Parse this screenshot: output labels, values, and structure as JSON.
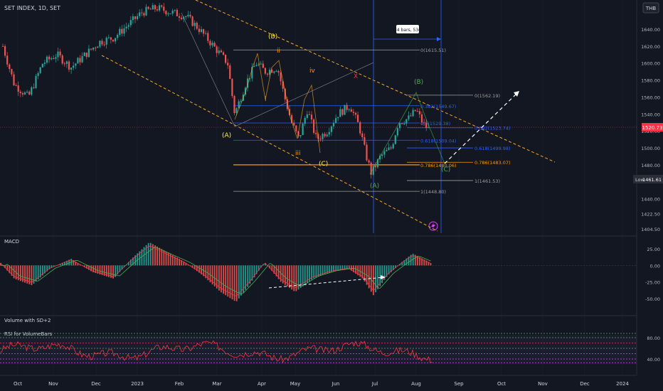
{
  "symbol": "SET INDEX, 1D, SET",
  "currency": "THB",
  "measure_label": "34 bars, 53d",
  "last_price": "1520.73",
  "low_label": "Low",
  "low_value": "1461.61",
  "lightning_icon": "lightning-icon",
  "colors": {
    "bg": "#131722",
    "up": "#26a69a",
    "down": "#ef5350",
    "grid": "#1e222d",
    "fib_blue": "#2962ff",
    "fib_orange": "#ff9800",
    "channel": "#f9a825",
    "text": "#d1d4dc",
    "rsi": "#f23645",
    "macd_line": "#f23645",
    "signal_line": "#4caf50"
  },
  "chart_data": [
    {
      "type": "candlestick",
      "price_axis_ticks": [
        "1640.00",
        "1620.00",
        "1600.00",
        "1580.00",
        "1560.00",
        "1540.00",
        "1520.00",
        "1500.00",
        "1480.00",
        "1461.61",
        "1440.00",
        "1422.50",
        "1404.50"
      ],
      "ylim": [
        1400,
        1655
      ],
      "time_axis_ticks": [
        "Oct",
        "Nov",
        "Dec",
        "2023",
        "Feb",
        "Mar",
        "Apr",
        "May",
        "Jun",
        "Jul",
        "Aug",
        "Sep",
        "Oct",
        "Nov",
        "Dec",
        "2024"
      ],
      "wave_labels": [
        "(A)",
        "(B)",
        "(C)",
        "i",
        "ii",
        "iii",
        "iv",
        "X",
        "(B)",
        "(A)",
        "(C)"
      ],
      "fib_levels_left": [
        {
          "label": "0(1615.51)",
          "value": 1615.51
        },
        {
          "label": "0.382(1549.67)",
          "value": 1549.67
        },
        {
          "label": "0.5(1529.38)",
          "value": 1529.38
        },
        {
          "label": "0.618(1509.04)",
          "value": 1509.04
        },
        {
          "label": "0.786(1480.06)",
          "value": 1480.06
        },
        {
          "label": "1(1448.80)",
          "value": 1448.8
        }
      ],
      "fib_levels_right": [
        {
          "label": "0(1562.19)",
          "value": 1562.19
        },
        {
          "label": "0.382(1523.74)",
          "value": 1523.74
        },
        {
          "label": "0.618(1499.98)",
          "value": 1499.98
        },
        {
          "label": "0.786(1483.07)",
          "value": 1483.07
        },
        {
          "label": "1(1461.53)",
          "value": 1461.53
        }
      ]
    },
    {
      "type": "bar",
      "title": "MACD",
      "axis_ticks": [
        "25.00",
        "0.00",
        "-25.00",
        "-50.00"
      ],
      "ylim": [
        -65,
        40
      ]
    },
    {
      "type": "line",
      "title": "RSI for VolumeBars",
      "volume_title": "Volume with SD+2",
      "axis_ticks": [
        "80.00",
        "40.00"
      ],
      "ylim": [
        20,
        95
      ]
    }
  ]
}
